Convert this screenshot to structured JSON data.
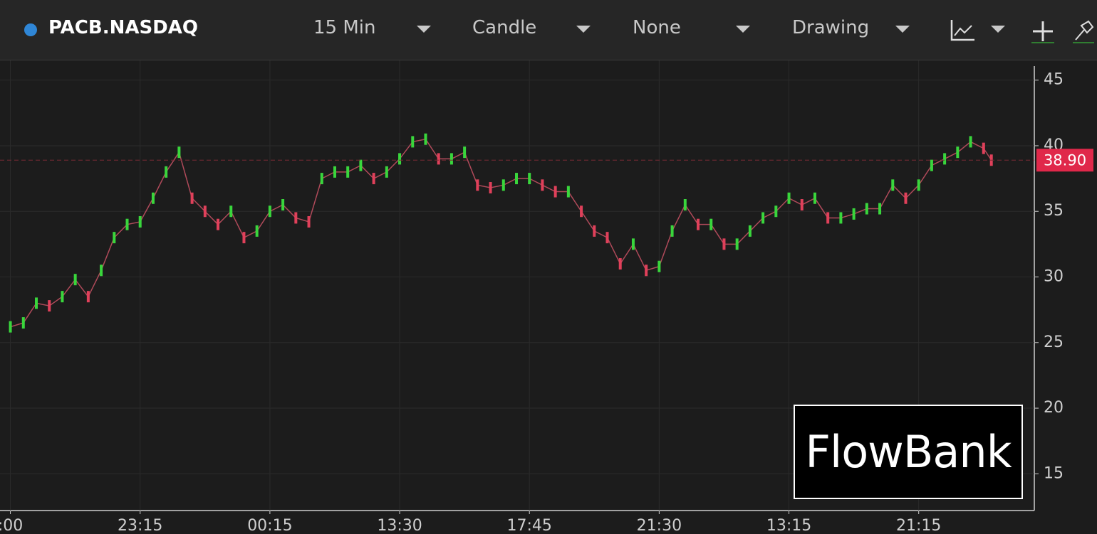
{
  "toolbar": {
    "symbol": "PACB.NASDAQ",
    "interval": "15 Min",
    "chart_style": "Candle",
    "study": "None",
    "drawing": "Drawing"
  },
  "watermark": "FlowBank",
  "chart_data": {
    "type": "line",
    "up_color": "#39d63c",
    "down_color": "#e0405a",
    "line_color": "#b04a5a",
    "x": [
      0,
      1,
      2,
      3,
      4,
      5,
      6,
      7,
      8,
      9,
      10,
      11,
      12,
      13,
      14,
      15,
      16,
      17,
      18,
      19,
      20,
      21,
      22,
      23,
      24,
      25,
      26,
      27,
      28,
      29,
      30,
      31,
      32,
      33,
      34,
      35,
      36,
      37,
      38,
      39,
      40,
      41,
      42,
      43,
      44,
      45,
      46,
      47,
      48,
      49,
      50,
      51,
      52,
      53,
      54,
      55,
      56,
      57,
      58,
      59,
      60,
      61,
      62,
      63,
      64,
      65,
      66,
      67,
      68,
      69,
      70,
      71,
      72,
      73,
      74,
      75,
      75.6
    ],
    "values": [
      26.2,
      26.5,
      28,
      27.8,
      28.5,
      29.8,
      28.5,
      30.5,
      33,
      34,
      34.2,
      36,
      38,
      39.5,
      36,
      35,
      34,
      35,
      33,
      33.5,
      35,
      35.5,
      34.5,
      34.2,
      37.5,
      38,
      38,
      38.5,
      37.5,
      38,
      39,
      40.3,
      40.5,
      39,
      39,
      39.5,
      37,
      36.8,
      37,
      37.5,
      37.5,
      37,
      36.5,
      36.5,
      35,
      33.5,
      33,
      31,
      32.5,
      30.5,
      30.8,
      33.5,
      35.5,
      34,
      34,
      32.5,
      32.5,
      33.5,
      34.5,
      35,
      36,
      35.5,
      36,
      34.5,
      34.5,
      34.8,
      35.2,
      35.2,
      37,
      36,
      37,
      38.5,
      39,
      39.5,
      40.3,
      39.8,
      38.9
    ],
    "last_price": {
      "value": 38.9,
      "label": "38.90"
    },
    "xlim": [
      -0.8,
      78.8
    ],
    "xticks": [
      {
        "value": 0,
        "label": ":00"
      },
      {
        "value": 10,
        "label": "23:15"
      },
      {
        "value": 20,
        "label": "00:15"
      },
      {
        "value": 30,
        "label": "13:30"
      },
      {
        "value": 40,
        "label": "17:45"
      },
      {
        "value": 50,
        "label": "21:30"
      },
      {
        "value": 60,
        "label": "13:15"
      },
      {
        "value": 70,
        "label": "21:15"
      }
    ],
    "ylim": [
      12.2,
      46.5
    ],
    "yticks": [
      15,
      20,
      25,
      30,
      35,
      40,
      45
    ],
    "grid": true
  }
}
